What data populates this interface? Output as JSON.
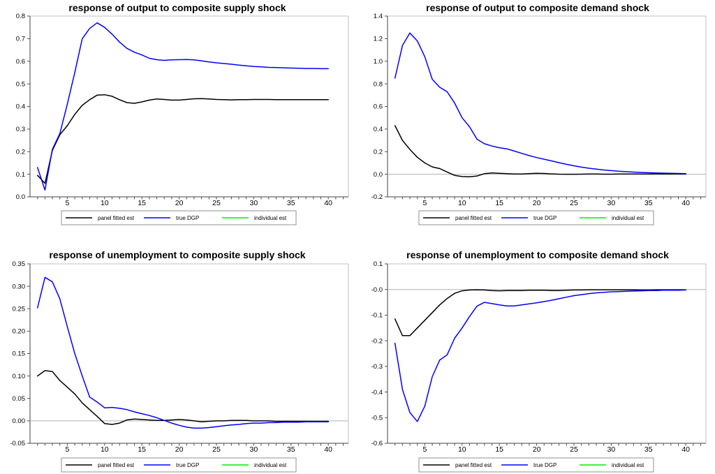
{
  "page": {
    "background": "#ffffff"
  },
  "legend": {
    "entries": [
      {
        "label": "panel fitted est",
        "color": "#000000"
      },
      {
        "label": "true DGP",
        "color": "#0000ff"
      },
      {
        "label": "individual est",
        "color": "#00ee00"
      }
    ]
  },
  "colors": {
    "frame_dark": "#404040",
    "frame_light": "#c0c0c0",
    "tick": "#505050",
    "zero_line": "#b0b0b0",
    "legend_border": "#909090"
  },
  "chart_data": [
    {
      "type": "line",
      "title": "response of output to composite supply shock",
      "xlim": [
        0,
        42.7
      ],
      "xtick_values": [
        5,
        10,
        15,
        20,
        25,
        30,
        35,
        40
      ],
      "xtick_labels": [
        "5",
        "10",
        "15",
        "20",
        "25",
        "30",
        "35",
        "40"
      ],
      "minor_xticks_from": 1,
      "minor_xticks_to": 42,
      "ylim": [
        0.0,
        0.8
      ],
      "ytick_values": [
        0.0,
        0.1,
        0.2,
        0.3,
        0.4,
        0.5,
        0.6,
        0.7,
        0.8
      ],
      "ytick_labels": [
        "0.0",
        "0.1",
        "0.2",
        "0.3",
        "0.4",
        "0.5",
        "0.6",
        "0.7",
        "0.8"
      ],
      "zero_line": false,
      "x": [
        1,
        2,
        3,
        4,
        5,
        6,
        7,
        8,
        9,
        10,
        11,
        12,
        13,
        14,
        15,
        16,
        17,
        18,
        19,
        20,
        21,
        22,
        23,
        24,
        25,
        26,
        27,
        28,
        29,
        30,
        31,
        32,
        33,
        34,
        35,
        36,
        37,
        38,
        39,
        40
      ],
      "series": [
        {
          "name": "panel fitted est",
          "color": "#000000",
          "values": [
            0.095,
            0.06,
            0.205,
            0.275,
            0.315,
            0.365,
            0.405,
            0.43,
            0.45,
            0.452,
            0.445,
            0.43,
            0.417,
            0.414,
            0.42,
            0.428,
            0.433,
            0.431,
            0.428,
            0.428,
            0.431,
            0.434,
            0.435,
            0.433,
            0.431,
            0.43,
            0.429,
            0.43,
            0.43,
            0.431,
            0.431,
            0.431,
            0.43,
            0.43,
            0.43,
            0.43,
            0.43,
            0.43,
            0.43,
            0.43
          ]
        },
        {
          "name": "true DGP",
          "color": "#0000ff",
          "values": [
            0.13,
            0.03,
            0.21,
            0.28,
            0.41,
            0.55,
            0.7,
            0.745,
            0.77,
            0.75,
            0.72,
            0.685,
            0.657,
            0.64,
            0.628,
            0.613,
            0.607,
            0.604,
            0.606,
            0.607,
            0.608,
            0.606,
            0.602,
            0.597,
            0.593,
            0.59,
            0.587,
            0.583,
            0.58,
            0.577,
            0.575,
            0.573,
            0.572,
            0.571,
            0.57,
            0.569,
            0.568,
            0.568,
            0.567,
            0.567
          ]
        }
      ],
      "legend": [
        "panel fitted est",
        "true DGP",
        "individual est"
      ]
    },
    {
      "type": "line",
      "title": "response of output to composite demand shock",
      "xlim": [
        0,
        42.7
      ],
      "xtick_values": [
        5,
        10,
        15,
        20,
        25,
        30,
        35,
        40
      ],
      "xtick_labels": [
        "5",
        "10",
        "15",
        "20",
        "25",
        "30",
        "35",
        "40"
      ],
      "minor_xticks_from": 1,
      "minor_xticks_to": 42,
      "ylim": [
        -0.2,
        1.4
      ],
      "ytick_values": [
        -0.2,
        0.0,
        0.2,
        0.4,
        0.6,
        0.8,
        1.0,
        1.2,
        1.4
      ],
      "ytick_labels": [
        "-0.2",
        "0.0",
        "0.2",
        "0.4",
        "0.6",
        "0.8",
        "1.0",
        "1.2",
        "1.4"
      ],
      "zero_line": true,
      "x": [
        1,
        2,
        3,
        4,
        5,
        6,
        7,
        8,
        9,
        10,
        11,
        12,
        13,
        14,
        15,
        16,
        17,
        18,
        19,
        20,
        21,
        22,
        23,
        24,
        25,
        26,
        27,
        28,
        29,
        30,
        31,
        32,
        33,
        34,
        35,
        36,
        37,
        38,
        39,
        40
      ],
      "series": [
        {
          "name": "panel fitted est",
          "color": "#000000",
          "values": [
            0.43,
            0.3,
            0.22,
            0.15,
            0.1,
            0.065,
            0.05,
            0.02,
            -0.01,
            -0.02,
            -0.022,
            -0.015,
            0.005,
            0.012,
            0.008,
            0.005,
            0.002,
            0.002,
            0.006,
            0.009,
            0.007,
            0.003,
            0.001,
            0.0,
            0.0,
            0.001,
            0.002,
            0.002,
            0.001,
            0.001,
            0.002,
            0.002,
            0.002,
            0.002,
            0.002,
            0.002,
            0.002,
            0.002,
            0.002,
            0.002
          ]
        },
        {
          "name": "true DGP",
          "color": "#0000ff",
          "values": [
            0.85,
            1.14,
            1.25,
            1.18,
            1.04,
            0.84,
            0.77,
            0.73,
            0.63,
            0.5,
            0.42,
            0.31,
            0.27,
            0.25,
            0.235,
            0.225,
            0.205,
            0.185,
            0.165,
            0.148,
            0.133,
            0.118,
            0.103,
            0.088,
            0.075,
            0.063,
            0.053,
            0.045,
            0.038,
            0.032,
            0.027,
            0.023,
            0.019,
            0.016,
            0.014,
            0.012,
            0.01,
            0.008,
            0.007,
            0.006
          ]
        }
      ],
      "legend": [
        "panel fitted est",
        "true DGP",
        "individual est"
      ]
    },
    {
      "type": "line",
      "title": "response of unemployment to composite supply shock",
      "xlim": [
        0,
        42.7
      ],
      "xtick_values": [
        5,
        10,
        15,
        20,
        25,
        30,
        35,
        40
      ],
      "xtick_labels": [
        "5",
        "10",
        "15",
        "20",
        "25",
        "30",
        "35",
        "40"
      ],
      "minor_xticks_from": 1,
      "minor_xticks_to": 42,
      "ylim": [
        -0.05,
        0.35
      ],
      "ytick_values": [
        -0.05,
        0.0,
        0.05,
        0.1,
        0.15,
        0.2,
        0.25,
        0.3,
        0.35
      ],
      "ytick_labels": [
        "-0.05",
        "0.00",
        "0.05",
        "0.10",
        "0.15",
        "0.20",
        "0.25",
        "0.30",
        "0.35"
      ],
      "zero_line": true,
      "x": [
        1,
        2,
        3,
        4,
        5,
        6,
        7,
        8,
        9,
        10,
        11,
        12,
        13,
        14,
        15,
        16,
        17,
        18,
        19,
        20,
        21,
        22,
        23,
        24,
        25,
        26,
        27,
        28,
        29,
        30,
        31,
        32,
        33,
        34,
        35,
        36,
        37,
        38,
        39,
        40
      ],
      "series": [
        {
          "name": "panel fitted est",
          "color": "#000000",
          "values": [
            0.1,
            0.112,
            0.11,
            0.09,
            0.075,
            0.06,
            0.04,
            0.025,
            0.01,
            -0.006,
            -0.008,
            -0.005,
            0.002,
            0.004,
            0.003,
            0.002,
            0.001,
            0.001,
            0.002,
            0.003,
            0.002,
            0.0,
            -0.002,
            -0.001,
            0.0,
            0.0,
            0.001,
            0.001,
            0.001,
            0.0,
            0.0,
            0.0,
            -0.001,
            -0.001,
            -0.001,
            -0.001,
            -0.001,
            -0.001,
            -0.001,
            -0.001
          ]
        },
        {
          "name": "true DGP",
          "color": "#0000ff",
          "values": [
            0.252,
            0.32,
            0.31,
            0.272,
            0.21,
            0.15,
            0.1,
            0.053,
            0.042,
            0.029,
            0.03,
            0.028,
            0.025,
            0.02,
            0.016,
            0.012,
            0.007,
            0.001,
            -0.005,
            -0.01,
            -0.014,
            -0.016,
            -0.016,
            -0.015,
            -0.013,
            -0.011,
            -0.009,
            -0.008,
            -0.006,
            -0.005,
            -0.005,
            -0.004,
            -0.004,
            -0.003,
            -0.003,
            -0.003,
            -0.002,
            -0.002,
            -0.002,
            -0.002
          ]
        }
      ],
      "legend": [
        "panel fitted est",
        "true DGP",
        "individual est"
      ]
    },
    {
      "type": "line",
      "title": "response of unemployment to composite demand shock",
      "xlim": [
        0,
        42.7
      ],
      "xtick_values": [
        5,
        10,
        15,
        20,
        25,
        30,
        35,
        40
      ],
      "xtick_labels": [
        "5",
        "10",
        "15",
        "20",
        "25",
        "30",
        "35",
        "40"
      ],
      "minor_xticks_from": 1,
      "minor_xticks_to": 42,
      "ylim": [
        -0.6,
        0.1
      ],
      "ytick_values": [
        -0.6,
        -0.5,
        -0.4,
        -0.3,
        -0.2,
        -0.1,
        0.0,
        0.1
      ],
      "ytick_labels": [
        "-0.6",
        "-0.5",
        "-0.4",
        "-0.3",
        "-0.2",
        "-0.1",
        "-0.0",
        "0.1"
      ],
      "zero_line": true,
      "x": [
        1,
        2,
        3,
        4,
        5,
        6,
        7,
        8,
        9,
        10,
        11,
        12,
        13,
        14,
        15,
        16,
        17,
        18,
        19,
        20,
        21,
        22,
        23,
        24,
        25,
        26,
        27,
        28,
        29,
        30,
        31,
        32,
        33,
        34,
        35,
        36,
        37,
        38,
        39,
        40
      ],
      "series": [
        {
          "name": "panel fitted est",
          "color": "#000000",
          "values": [
            -0.115,
            -0.18,
            -0.18,
            -0.15,
            -0.12,
            -0.09,
            -0.06,
            -0.035,
            -0.015,
            -0.005,
            -0.002,
            -0.001,
            -0.002,
            -0.004,
            -0.005,
            -0.004,
            -0.004,
            -0.004,
            -0.003,
            -0.003,
            -0.003,
            -0.004,
            -0.004,
            -0.003,
            -0.002,
            -0.002,
            -0.001,
            -0.001,
            -0.001,
            -0.001,
            -0.001,
            -0.001,
            -0.001,
            -0.002,
            -0.002,
            -0.001,
            -0.001,
            -0.001,
            -0.001,
            -0.001
          ]
        },
        {
          "name": "true DGP",
          "color": "#0000ff",
          "values": [
            -0.21,
            -0.39,
            -0.48,
            -0.515,
            -0.455,
            -0.34,
            -0.275,
            -0.255,
            -0.19,
            -0.15,
            -0.105,
            -0.065,
            -0.05,
            -0.055,
            -0.06,
            -0.064,
            -0.064,
            -0.06,
            -0.056,
            -0.052,
            -0.047,
            -0.042,
            -0.036,
            -0.03,
            -0.024,
            -0.02,
            -0.016,
            -0.013,
            -0.011,
            -0.009,
            -0.008,
            -0.007,
            -0.006,
            -0.005,
            -0.004,
            -0.004,
            -0.003,
            -0.003,
            -0.003,
            -0.002
          ]
        }
      ],
      "legend": [
        "panel fitted est",
        "true DGP",
        "individual est"
      ]
    }
  ]
}
